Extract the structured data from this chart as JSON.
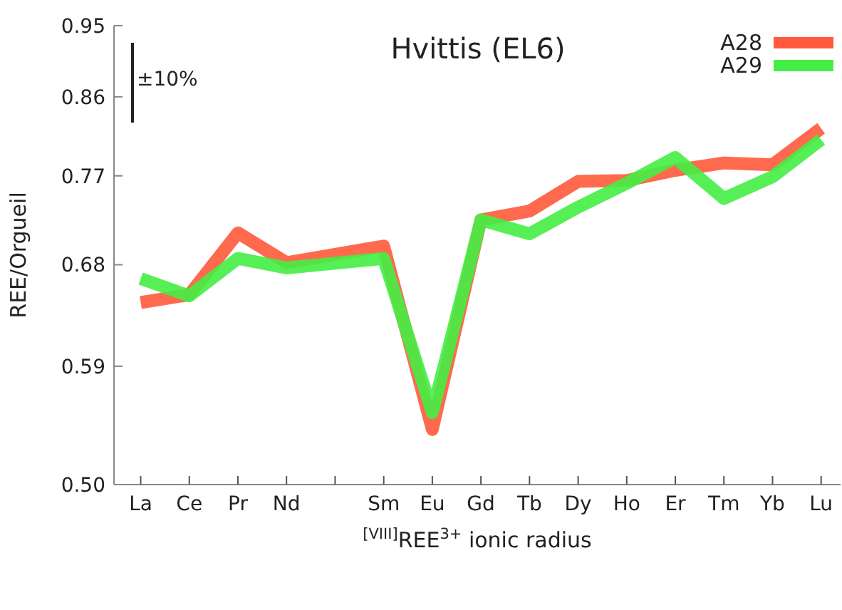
{
  "chart_data": {
    "type": "line",
    "title": "Hvittis (EL6)",
    "xlabel": "$^{[VIII]}$REE$^{3+}$ ionic radius",
    "ylabel": "REE/Orgueil",
    "categories": [
      "La",
      "Ce",
      "Pr",
      "Nd",
      null,
      "Sm",
      "Eu",
      "Gd",
      "Tb",
      "Dy",
      "Ho",
      "Er",
      "Tm",
      "Yb",
      "Lu"
    ],
    "series": [
      {
        "name": "A28",
        "color": "#ff5a3c",
        "values": [
          0.645,
          0.652,
          0.711,
          0.682,
          null,
          0.698,
          0.54,
          0.724,
          0.733,
          0.764,
          0.765,
          0.776,
          0.784,
          0.782,
          0.823
        ]
      },
      {
        "name": "A29",
        "color": "#44ee44",
        "values": [
          0.667,
          0.651,
          0.686,
          0.677,
          null,
          0.686,
          0.553,
          0.724,
          0.71,
          0.737,
          0.762,
          0.79,
          0.746,
          0.769,
          0.81
        ]
      }
    ],
    "log": "y",
    "ylim": [
      0.5,
      0.95
    ],
    "yticks": [
      {
        "value": 0.5,
        "label": "0.50"
      },
      0.59,
      0.68,
      0.77,
      0.86,
      0.95
    ],
    "annotations": [
      "±10%"
    ],
    "legend": "top right",
    "marker": "none",
    "line_style": "solid"
  }
}
